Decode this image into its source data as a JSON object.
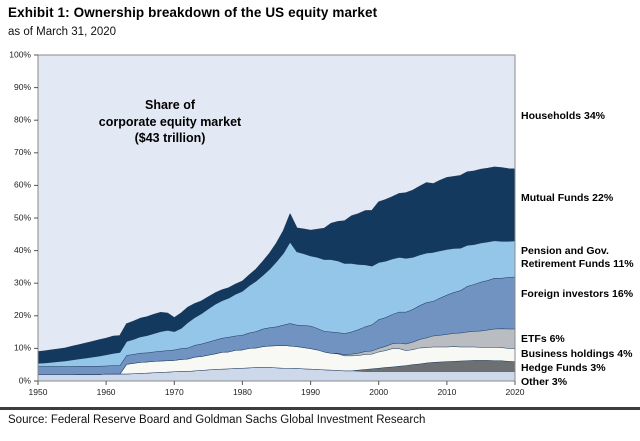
{
  "header": {
    "title": "Exhibit 1: Ownership breakdown of the US equity market",
    "subtitle": "as of March 31, 2020"
  },
  "annotation": "Share of\ncorporate equity market\n($43 trillion)",
  "source": "Source: Federal Reserve Board and Goldman Sachs Global Investment Research",
  "right_labels": [
    {
      "text": "Households 34%"
    },
    {
      "text": "Mutual Funds 22%"
    },
    {
      "text": "Pension and Gov.\nRetirement Funds 11%"
    },
    {
      "text": "Foreign investors 16%"
    },
    {
      "text": "ETFs 6%"
    },
    {
      "text": "Business holdings 4%"
    },
    {
      "text": "Hedge Funds 3%"
    },
    {
      "text": "Other 3%"
    }
  ],
  "chart_data": {
    "type": "area",
    "stacked": true,
    "title": "Share of corporate equity market ($43 trillion)",
    "xlabel": "",
    "ylabel": "",
    "xlim": [
      1950,
      2020
    ],
    "ylim": [
      0,
      100
    ],
    "grid": false,
    "legend_position": "right-margin-labels",
    "background_series": {
      "name": "Households",
      "share_2020": 34,
      "color": "#e3e9f4"
    },
    "outline_color": "#1b3a5c",
    "frame_color": "#8a8a8a",
    "x_ticks": [
      {
        "v": 1950,
        "label": "1950"
      },
      {
        "v": 1960,
        "label": "1960"
      },
      {
        "v": 1970,
        "label": "1970"
      },
      {
        "v": 1980,
        "label": "1980"
      },
      {
        "v": 1990,
        "label": "1990"
      },
      {
        "v": 2000,
        "label": "2000"
      },
      {
        "v": 2010,
        "label": "2010"
      },
      {
        "v": 2020,
        "label": "2020"
      }
    ],
    "y_ticks": [
      {
        "v": 0,
        "label": "0%"
      },
      {
        "v": 10,
        "label": "10%"
      },
      {
        "v": 20,
        "label": "20%"
      },
      {
        "v": 30,
        "label": "30%"
      },
      {
        "v": 40,
        "label": "40%"
      },
      {
        "v": 50,
        "label": "50%"
      },
      {
        "v": 60,
        "label": "60%"
      },
      {
        "v": 70,
        "label": "70%"
      },
      {
        "v": 80,
        "label": "80%"
      },
      {
        "v": 90,
        "label": "90%"
      },
      {
        "v": 100,
        "label": "100%"
      }
    ],
    "x": [
      1950,
      1951,
      1952,
      1953,
      1954,
      1955,
      1956,
      1957,
      1958,
      1959,
      1960,
      1961,
      1962,
      1963,
      1964,
      1965,
      1966,
      1967,
      1968,
      1969,
      1970,
      1971,
      1972,
      1973,
      1974,
      1975,
      1976,
      1977,
      1978,
      1979,
      1980,
      1981,
      1982,
      1983,
      1984,
      1985,
      1986,
      1987,
      1988,
      1989,
      1990,
      1991,
      1992,
      1993,
      1994,
      1995,
      1996,
      1997,
      1998,
      1999,
      2000,
      2001,
      2002,
      2003,
      2004,
      2005,
      2006,
      2007,
      2008,
      2009,
      2010,
      2011,
      2012,
      2013,
      2014,
      2015,
      2016,
      2017,
      2018,
      2019,
      2020
    ],
    "series": [
      {
        "name": "Other",
        "share_2020": 3,
        "color": "#cdd9eb",
        "values": [
          2.0,
          2.0,
          2.0,
          2.0,
          2.0,
          2.0,
          2.1,
          2.1,
          2.1,
          2.1,
          2.2,
          2.2,
          2.2,
          2.2,
          2.3,
          2.4,
          2.5,
          2.6,
          2.7,
          2.8,
          2.9,
          3.0,
          3.0,
          3.2,
          3.3,
          3.5,
          3.6,
          3.7,
          3.8,
          3.9,
          4.0,
          4.1,
          4.2,
          4.2,
          4.2,
          4.1,
          4.0,
          4.0,
          3.9,
          3.8,
          3.7,
          3.6,
          3.5,
          3.4,
          3.3,
          3.2,
          3.2,
          3.1,
          3.0,
          3.0,
          3.0,
          3.0,
          3.0,
          3.0,
          3.0,
          3.0,
          3.0,
          3.0,
          3.0,
          3.0,
          3.0,
          3.0,
          3.0,
          3.0,
          3.0,
          3.0,
          3.0,
          3.0,
          3.0,
          3.0,
          3.0
        ]
      },
      {
        "name": "Hedge Funds",
        "share_2020": 3,
        "color": "#6c7073",
        "values": [
          0,
          0,
          0,
          0,
          0,
          0,
          0,
          0,
          0,
          0,
          0,
          0,
          0,
          0,
          0,
          0,
          0,
          0,
          0,
          0,
          0,
          0,
          0,
          0,
          0,
          0,
          0,
          0,
          0,
          0,
          0,
          0,
          0,
          0,
          0,
          0,
          0,
          0,
          0,
          0,
          0,
          0,
          0,
          0,
          0,
          0,
          0,
          0.3,
          0.6,
          0.8,
          1.0,
          1.2,
          1.4,
          1.6,
          1.8,
          2.1,
          2.3,
          2.6,
          2.8,
          2.9,
          3.0,
          3.1,
          3.2,
          3.3,
          3.4,
          3.4,
          3.4,
          3.3,
          3.3,
          3.1,
          3.0
        ]
      },
      {
        "name": "Business holdings",
        "share_2020": 4,
        "color": "#f8f8f5",
        "values": [
          0,
          0,
          0,
          0,
          0,
          0,
          0,
          0,
          0,
          0,
          0,
          0,
          0,
          3.0,
          3.2,
          3.4,
          3.4,
          3.5,
          3.5,
          3.5,
          3.5,
          3.7,
          3.8,
          4.2,
          4.3,
          4.5,
          4.8,
          5.2,
          5.2,
          5.6,
          5.6,
          6.0,
          6.0,
          6.4,
          6.6,
          6.8,
          7.0,
          6.8,
          6.7,
          6.5,
          6.3,
          6.0,
          5.5,
          5.2,
          5.1,
          4.6,
          4.6,
          4.5,
          4.6,
          4.5,
          5.0,
          5.2,
          5.6,
          5.4,
          4.6,
          4.6,
          4.9,
          4.7,
          4.7,
          4.6,
          4.5,
          4.5,
          4.3,
          4.2,
          4.1,
          4.0,
          4.0,
          4.1,
          4.0,
          4.0,
          4.0
        ]
      },
      {
        "name": "ETFs",
        "share_2020": 6,
        "color": "#b9bdc1",
        "values": [
          0,
          0,
          0,
          0,
          0,
          0,
          0,
          0,
          0,
          0,
          0,
          0,
          0,
          0,
          0,
          0,
          0,
          0,
          0,
          0,
          0,
          0,
          0,
          0,
          0,
          0,
          0,
          0,
          0,
          0,
          0,
          0,
          0,
          0,
          0,
          0,
          0,
          0,
          0,
          0,
          0,
          0,
          0,
          0,
          0.2,
          0.3,
          0.5,
          0.7,
          0.9,
          1.0,
          1.1,
          1.3,
          1.5,
          1.7,
          2.0,
          2.3,
          2.6,
          3.0,
          3.4,
          3.6,
          3.9,
          4.1,
          4.3,
          4.6,
          4.8,
          5.0,
          5.3,
          5.6,
          5.8,
          5.9,
          6.0
        ]
      },
      {
        "name": "Foreign investors",
        "share_2020": 16,
        "color": "#7093c2",
        "values": [
          2.5,
          2.5,
          2.5,
          2.5,
          2.5,
          2.5,
          2.5,
          2.5,
          2.5,
          2.5,
          2.5,
          2.6,
          2.6,
          2.7,
          2.7,
          2.8,
          2.8,
          2.9,
          3.0,
          3.1,
          3.2,
          3.3,
          3.4,
          3.6,
          3.8,
          4.0,
          4.2,
          4.3,
          4.5,
          4.4,
          4.5,
          4.7,
          5.0,
          5.4,
          5.6,
          5.8,
          6.2,
          6.9,
          6.6,
          6.8,
          6.9,
          6.6,
          6.3,
          6.5,
          6.3,
          6.5,
          6.8,
          7.2,
          7.6,
          8.0,
          8.8,
          8.8,
          9.0,
          9.5,
          9.8,
          10.0,
          10.4,
          10.8,
          10.6,
          11.4,
          12.0,
          12.5,
          13.0,
          14.0,
          14.4,
          15.0,
          15.2,
          15.6,
          15.5,
          15.8,
          16.0
        ]
      },
      {
        "name": "Pension and Gov. Retirement Funds",
        "share_2020": 11,
        "color": "#94c6e9",
        "values": [
          1.0,
          1.1,
          1.3,
          1.5,
          1.7,
          2.0,
          2.2,
          2.5,
          2.8,
          3.1,
          3.4,
          3.7,
          4.0,
          4.3,
          4.6,
          5.0,
          5.3,
          5.6,
          6.0,
          6.2,
          5.6,
          6.2,
          7.8,
          8.5,
          9.3,
          10.2,
          11.0,
          11.5,
          12.0,
          12.8,
          13.5,
          14.5,
          15.5,
          16.5,
          18.0,
          20.0,
          22.0,
          25.0,
          22.5,
          22.0,
          21.5,
          21.8,
          22.0,
          22.2,
          22.0,
          21.5,
          21.0,
          20.0,
          19.0,
          18.0,
          17.5,
          17.3,
          17.0,
          16.8,
          16.5,
          16.0,
          15.5,
          15.2,
          15.0,
          14.5,
          14.0,
          13.5,
          13.0,
          12.6,
          12.2,
          12.0,
          11.8,
          11.5,
          11.3,
          11.1,
          11.0
        ]
      },
      {
        "name": "Mutual Funds",
        "share_2020": 22,
        "color": "#14395f",
        "values": [
          3.5,
          3.6,
          3.7,
          3.8,
          3.9,
          4.1,
          4.3,
          4.5,
          4.7,
          4.9,
          5.0,
          5.2,
          5.1,
          5.3,
          5.5,
          5.6,
          5.7,
          5.8,
          5.8,
          5.2,
          4.2,
          4.6,
          4.6,
          4.2,
          3.8,
          3.6,
          3.4,
          3.2,
          3.1,
          3.0,
          3.0,
          3.2,
          3.6,
          4.2,
          4.8,
          5.6,
          6.8,
          8.5,
          7.2,
          7.5,
          7.8,
          8.5,
          9.5,
          11.0,
          12.0,
          13.0,
          14.5,
          15.5,
          16.5,
          17.0,
          18.5,
          18.8,
          19.0,
          19.5,
          20.0,
          20.5,
          21.0,
          21.5,
          21.0,
          21.5,
          22.0,
          22.0,
          22.2,
          22.4,
          22.5,
          22.5,
          22.5,
          22.5,
          22.5,
          22.2,
          22.0
        ]
      }
    ]
  }
}
